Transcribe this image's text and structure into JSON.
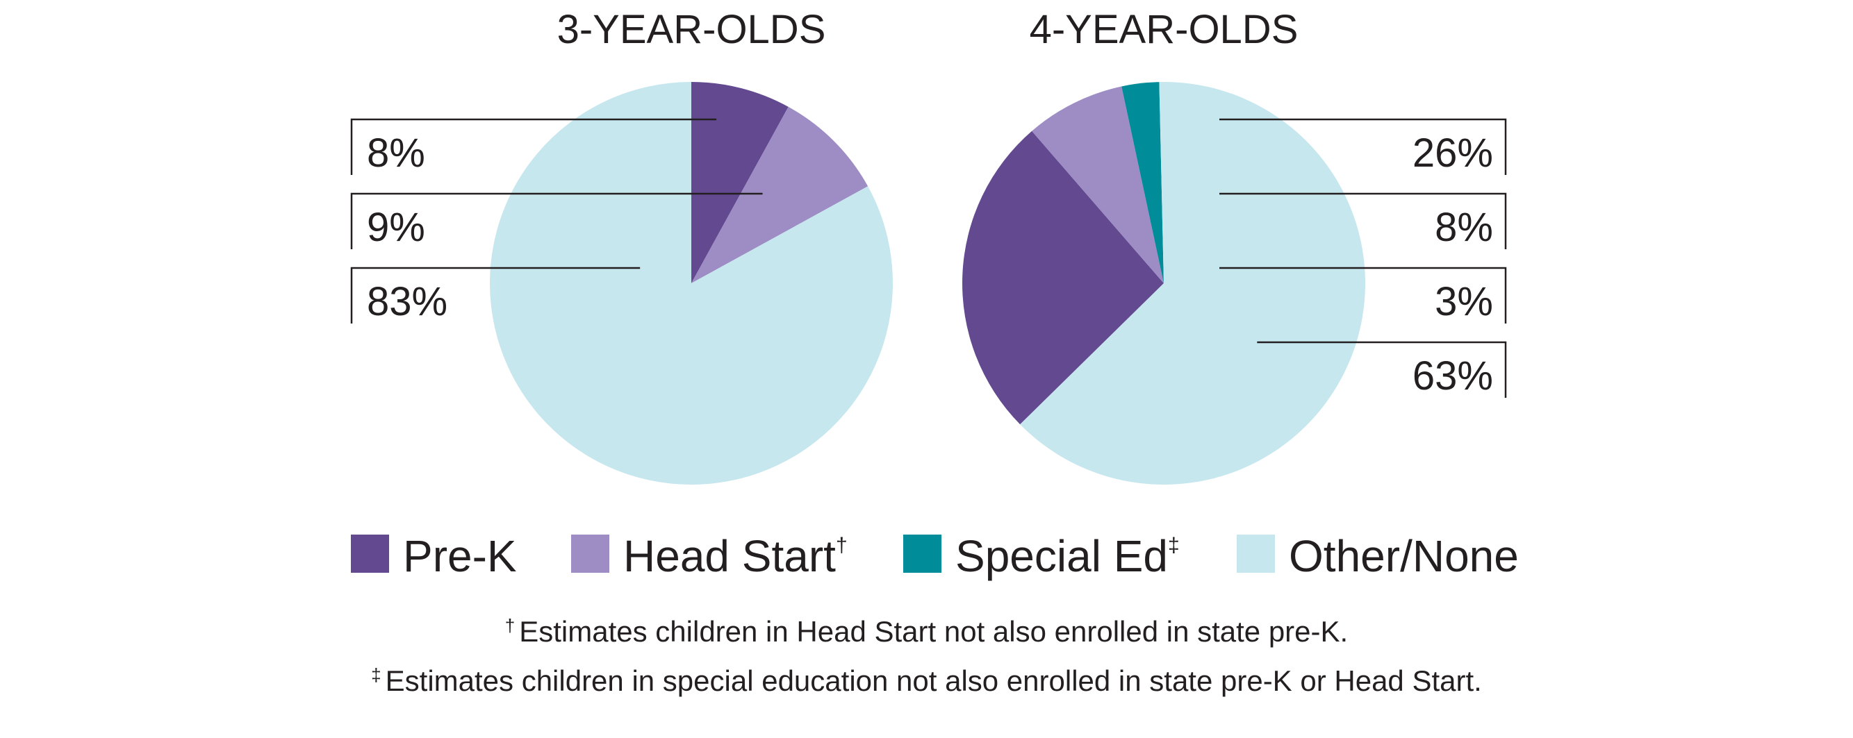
{
  "chart_data": [
    {
      "type": "pie",
      "title": "3-YEAR-OLDS",
      "categories": [
        "Pre-K",
        "Head Start",
        "Special Ed",
        "Other/None"
      ],
      "values": [
        8,
        9,
        0,
        83
      ],
      "labels": [
        "8%",
        "9%",
        "83%"
      ],
      "start": "12 o'clock, clockwise",
      "label_side": "left"
    },
    {
      "type": "pie",
      "title": "4-YEAR-OLDS",
      "categories": [
        "Pre-K",
        "Head Start",
        "Special Ed",
        "Other/None"
      ],
      "values": [
        26,
        8,
        3,
        63
      ],
      "labels": [
        "26%",
        "8%",
        "3%",
        "63%"
      ],
      "start": "Other/None ends at upper-left",
      "label_side": "right"
    }
  ],
  "colors": {
    "Pre-K": "#634990",
    "Head Start": "#9d8dc4",
    "Special Ed": "#008c99",
    "Other/None": "#c6e7ee",
    "text": "#231f20"
  },
  "legend": {
    "items": [
      {
        "label": "Pre-K",
        "marker": ""
      },
      {
        "label": "Head Start",
        "marker": "†"
      },
      {
        "label": "Special Ed",
        "marker": "‡"
      },
      {
        "label": "Other/None",
        "marker": ""
      }
    ]
  },
  "footnotes": [
    {
      "marker": "†",
      "text": "Estimates children in Head Start not also enrolled in state pre-K."
    },
    {
      "marker": "‡",
      "text": "Estimates children in special education not also enrolled in state pre-K or Head Start."
    }
  ]
}
